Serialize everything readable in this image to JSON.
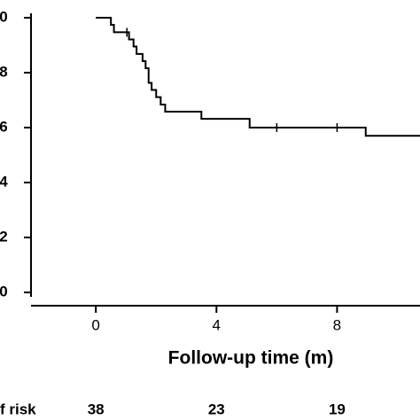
{
  "chart_data": {
    "type": "step",
    "x_label": "Follow-up time (m)",
    "x": [
      0,
      0.5,
      0.6,
      1.1,
      1.25,
      1.35,
      1.55,
      1.65,
      1.75,
      1.85,
      2.0,
      2.15,
      2.3,
      3.5,
      5.1,
      8.95
    ],
    "series": [
      {
        "color": "#000000",
        "values": [
          1.0,
          0.974,
          0.947,
          0.921,
          0.895,
          0.868,
          0.842,
          0.816,
          0.763,
          0.737,
          0.711,
          0.684,
          0.658,
          0.632,
          0.6,
          0.57
        ]
      }
    ],
    "censor_x": [
      1.03,
      6.0,
      8.0
    ],
    "censor_values": [
      0.947,
      0.6,
      0.6
    ],
    "xlim": [
      -2.15,
      10.75
    ],
    "ylim": [
      0,
      1.0
    ],
    "xticks": [
      0,
      4,
      8
    ],
    "yticks": [
      0,
      {
        "value": 0.2,
        "label": "2"
      },
      {
        "value": 0.4,
        "label": "4"
      },
      {
        "value": 0.6,
        "label": "6"
      },
      {
        "value": 0.8,
        "label": "8"
      },
      {
        "value": 1.0,
        "label": "0"
      }
    ],
    "risk_label": "f risk",
    "risk_x": [
      0,
      4,
      8
    ],
    "risk_counts": [
      38,
      23,
      19
    ]
  }
}
